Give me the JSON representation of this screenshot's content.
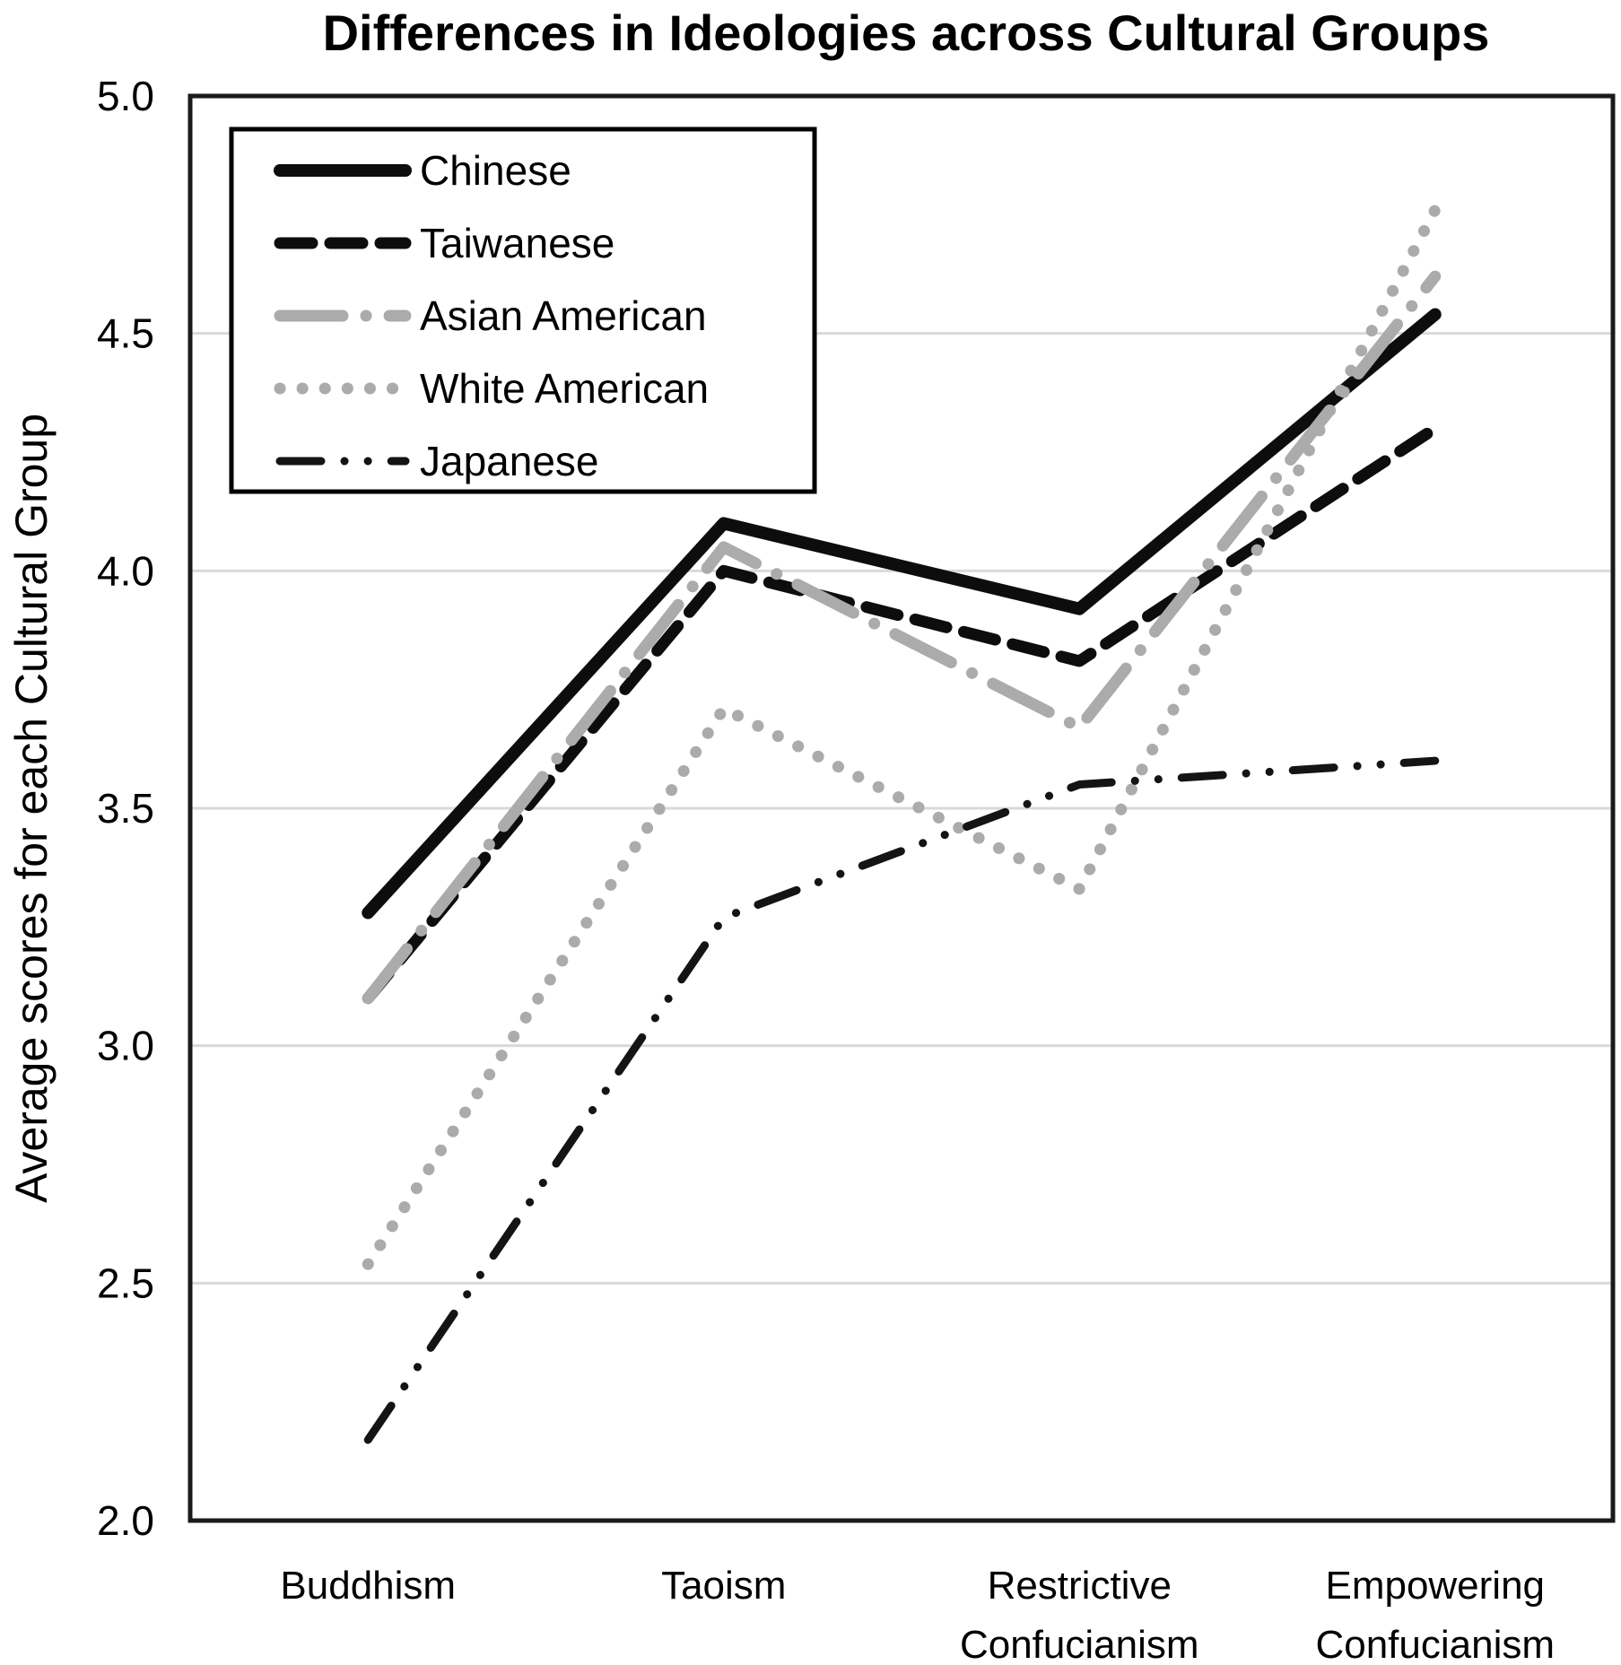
{
  "chart_data": {
    "type": "line",
    "title": "Differences in Ideologies across Cultural Groups",
    "ylabel": "Average scores for each Cultural Group",
    "xlabel": "",
    "categories": [
      {
        "label_lines": [
          "Buddhism"
        ]
      },
      {
        "label_lines": [
          "Taoism"
        ]
      },
      {
        "label_lines": [
          "Restrictive",
          "Confucianism"
        ]
      },
      {
        "label_lines": [
          "Empowering",
          "Confucianism"
        ]
      }
    ],
    "y_ticks": [
      "5.0",
      "4.5",
      "4.0",
      "3.5",
      "3.0",
      "2.5",
      "2.0"
    ],
    "ylim": [
      2.0,
      5.0
    ],
    "grid": "horizontal gridlines every 0.5",
    "legend": {
      "position": "top-left-inside"
    },
    "series": [
      {
        "name": "Chinese",
        "style": "solid",
        "color": "#0d0d0d",
        "width": 14,
        "values": [
          3.28,
          4.1,
          3.92,
          4.54
        ]
      },
      {
        "name": "Taiwanese",
        "style": "dashed",
        "color": "#0d0d0d",
        "width": 13,
        "values": [
          3.1,
          4.0,
          3.81,
          4.3
        ]
      },
      {
        "name": "Asian American",
        "style": "long-dash-dot",
        "color": "#ababab",
        "width": 13,
        "values": [
          3.1,
          4.05,
          3.67,
          4.62
        ]
      },
      {
        "name": "White American",
        "style": "dotted",
        "color": "#ababab",
        "width": 13,
        "values": [
          2.54,
          3.71,
          3.33,
          4.76
        ]
      },
      {
        "name": "Japanese",
        "style": "dash-dot-dot",
        "color": "#141414",
        "width": 9,
        "values": [
          2.17,
          3.27,
          3.55,
          3.6
        ]
      }
    ],
    "gridline_color": "#d9d9d9",
    "axis_border_color": "#1a1a1a",
    "background": "#ffffff"
  }
}
